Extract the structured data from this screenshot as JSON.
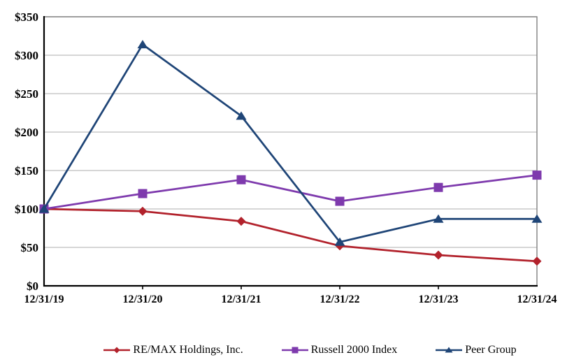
{
  "chart_data": {
    "type": "line",
    "title": "",
    "categories": [
      "12/31/19",
      "12/31/20",
      "12/31/21",
      "12/31/22",
      "12/31/23",
      "12/31/24"
    ],
    "series": [
      {
        "name": "RE/MAX Holdings, Inc.",
        "marker": "diamond",
        "color": "#b2222c",
        "values": [
          100,
          97,
          84,
          52,
          40,
          32
        ]
      },
      {
        "name": "Russell 2000 Index",
        "marker": "square",
        "color": "#7e3aad",
        "values": [
          100,
          120,
          138,
          110,
          128,
          144
        ]
      },
      {
        "name": "Peer Group",
        "marker": "triangle",
        "color": "#1f4577",
        "values": [
          100,
          314,
          221,
          57,
          87,
          87
        ]
      }
    ],
    "xlabel": "",
    "ylabel": "",
    "ylim": [
      0,
      350
    ],
    "y_tick_values": [
      0,
      50,
      100,
      150,
      200,
      250,
      300,
      350
    ],
    "y_tick_labels": [
      "$0",
      "$50",
      "$100",
      "$150",
      "$200",
      "$250",
      "$300",
      "$350"
    ],
    "grid": true,
    "legend_position": "bottom",
    "colors": {
      "gridline": "#c9c9c9",
      "plot_border": "#808080",
      "axis": "#000000",
      "text": "#000000",
      "background": "#ffffff"
    }
  }
}
